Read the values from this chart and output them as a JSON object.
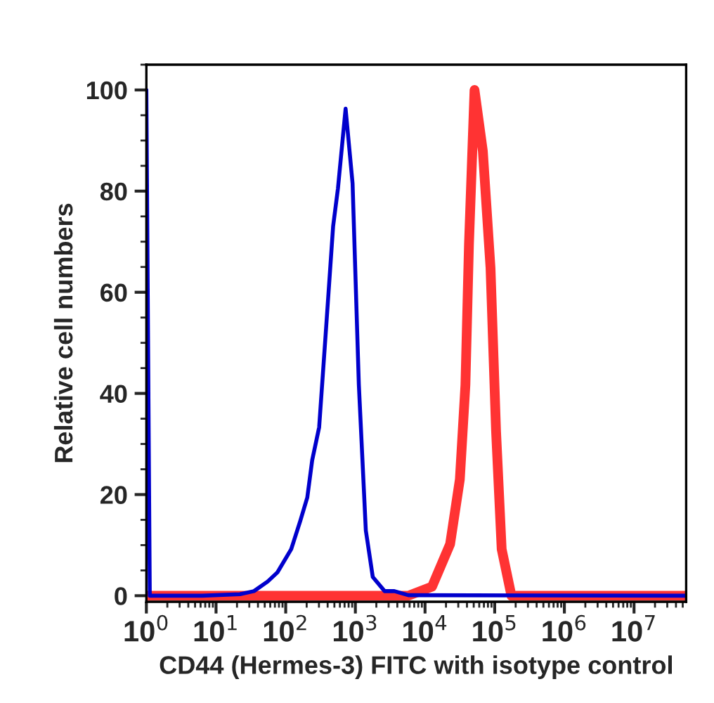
{
  "chart_data": {
    "type": "line",
    "xlabel": "CD44 (Hermes-3) FITC with isotype control",
    "ylabel": "Relative cell numbers",
    "log": "x",
    "xlim": [
      1,
      56000000
    ],
    "ylim": [
      -1.2,
      105
    ],
    "xticks": [
      {
        "value": 1,
        "label": "10$^{0}$"
      },
      {
        "value": 10,
        "label": "10$^{1}$"
      },
      {
        "value": 100,
        "label": "10$^{2}$"
      },
      {
        "value": 1000,
        "label": "10$^{3}$"
      },
      {
        "value": 10000,
        "label": "10$^{4}$"
      },
      {
        "value": 100000,
        "label": "10$^{5}$"
      },
      {
        "value": 1000000,
        "label": "10$^{6}$"
      },
      {
        "value": 10000000,
        "label": "10$^{7}$"
      }
    ],
    "yticks": [
      0,
      20,
      40,
      60,
      80,
      100
    ],
    "grid": false,
    "legend": false,
    "marker": "none",
    "line_style": "solid",
    "series": [
      {
        "color": "#ff3333",
        "x": [
          1,
          5754,
          12600,
          22900,
          31600,
          38000,
          42700,
          51300,
          67600,
          87100,
          104700,
          125900,
          173800,
          56000000
        ],
        "values": [
          0,
          0,
          1.8,
          10.2,
          23,
          41.7,
          69.4,
          100,
          87.9,
          64.8,
          32.4,
          9.2,
          0,
          0
        ]
      },
      {
        "color": "#0000cc",
        "x": [
          1,
          1.12,
          6.3,
          22,
          35,
          55,
          76,
          120,
          162,
          204,
          240,
          302,
          363,
          479,
          562,
          724,
          912,
          1122,
          1413,
          1778,
          2630,
          3631,
          5754,
          56000000
        ],
        "values": [
          100,
          0,
          0,
          0.3,
          0.9,
          2.8,
          4.6,
          9.2,
          14.8,
          19.4,
          26.8,
          33.3,
          49,
          73,
          80.5,
          96.3,
          81.5,
          41.7,
          12.9,
          3.7,
          0.9,
          0.9,
          0.1,
          0
        ]
      }
    ]
  }
}
